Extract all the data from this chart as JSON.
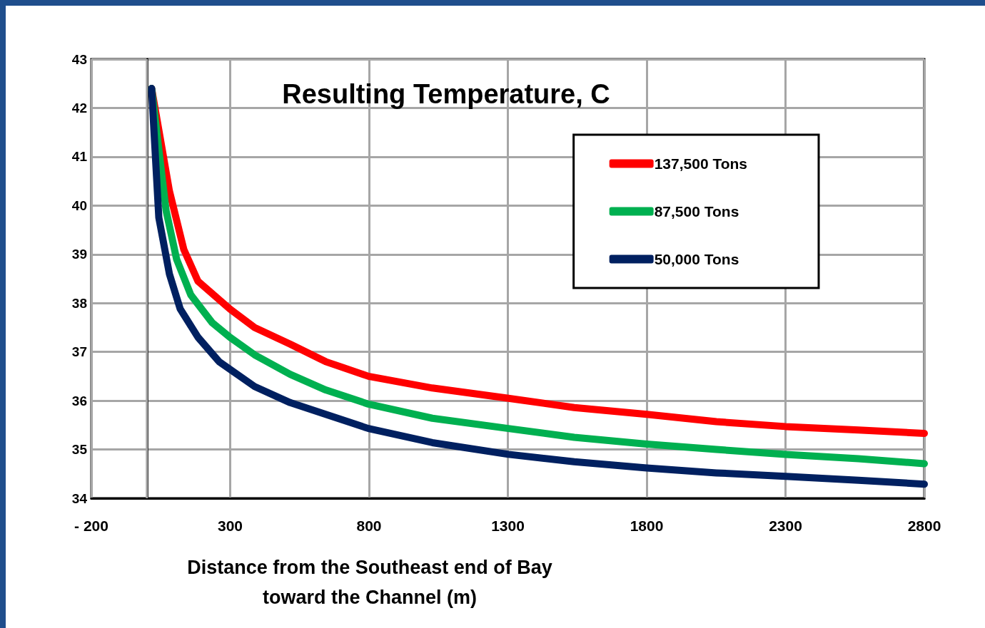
{
  "chart_data": {
    "type": "line",
    "title": "Resulting Temperature, C",
    "xlabel": "Distance from the Southeast end of Bay\ntoward the Channel (m)",
    "xlim": [
      -200,
      2800
    ],
    "xticks": [
      {
        "value": -200,
        "label": "- 200"
      },
      300,
      800,
      1300,
      1800,
      2300,
      2800
    ],
    "ylim": [
      34,
      43
    ],
    "yticks": [
      34,
      35,
      36,
      37,
      38,
      39,
      40,
      41,
      42,
      43
    ],
    "grid": true,
    "legend": "top right",
    "line_style": "solid",
    "ref_lines": [
      {
        "axis": "x",
        "value": 0,
        "label": null,
        "color": "#a6a6a6"
      }
    ],
    "series": [
      {
        "name": "137,500 Tons",
        "color": "#ff0000",
        "x": [
          17,
          81,
          133,
          184,
          299,
          388,
          516,
          644,
          798,
          1028,
          1302,
          1539,
          1800,
          2051,
          2300,
          2563,
          2800
        ],
        "values": [
          42.4,
          40.3,
          39.1,
          38.45,
          37.88,
          37.5,
          37.16,
          36.8,
          36.5,
          36.26,
          36.05,
          35.86,
          35.72,
          35.57,
          35.47,
          35.4,
          35.33
        ]
      },
      {
        "name": "87,500 Tons",
        "color": "#00b050",
        "x": [
          17,
          69,
          107,
          158,
          235,
          299,
          388,
          516,
          644,
          798,
          1028,
          1302,
          1539,
          1800,
          2051,
          2300,
          2563,
          2800
        ],
        "values": [
          42.4,
          39.9,
          38.9,
          38.17,
          37.6,
          37.3,
          36.94,
          36.54,
          36.22,
          35.93,
          35.64,
          35.43,
          35.25,
          35.11,
          35.0,
          34.9,
          34.81,
          34.71
        ]
      },
      {
        "name": "50,000 Tons",
        "color": "#002060",
        "x": [
          17,
          43,
          81,
          120,
          184,
          260,
          388,
          516,
          644,
          798,
          1028,
          1302,
          1539,
          1800,
          2051,
          2300,
          2563,
          2800
        ],
        "values": [
          42.4,
          39.75,
          38.6,
          37.88,
          37.3,
          36.8,
          36.29,
          35.96,
          35.72,
          35.43,
          35.14,
          34.9,
          34.75,
          34.62,
          34.52,
          34.45,
          34.37,
          34.29
        ]
      }
    ]
  }
}
